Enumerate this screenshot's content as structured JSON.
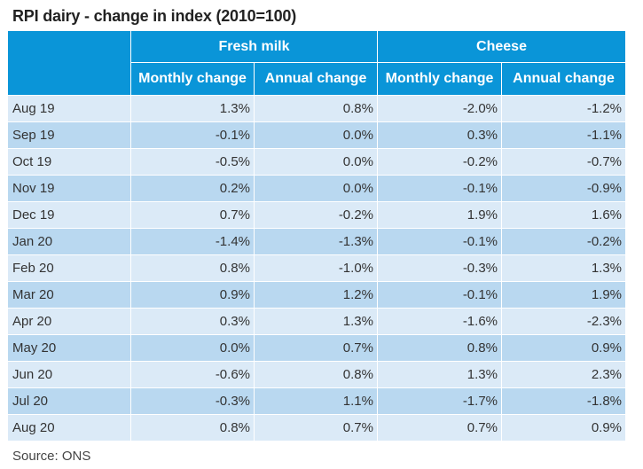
{
  "title": "RPI dairy - change in index (2010=100)",
  "source": "Source: ONS",
  "groups": [
    "Fresh milk",
    "Cheese"
  ],
  "subheaders": [
    "Monthly change",
    "Annual change",
    "Monthly change",
    "Annual change"
  ],
  "rows": [
    {
      "month": "Aug 19",
      "values": [
        "1.3%",
        "0.8%",
        "-2.0%",
        "-1.2%"
      ]
    },
    {
      "month": "Sep 19",
      "values": [
        "-0.1%",
        "0.0%",
        "0.3%",
        "-1.1%"
      ]
    },
    {
      "month": "Oct 19",
      "values": [
        "-0.5%",
        "0.0%",
        "-0.2%",
        "-0.7%"
      ]
    },
    {
      "month": "Nov 19",
      "values": [
        "0.2%",
        "0.0%",
        "-0.1%",
        "-0.9%"
      ]
    },
    {
      "month": "Dec 19",
      "values": [
        "0.7%",
        "-0.2%",
        "1.9%",
        "1.6%"
      ]
    },
    {
      "month": "Jan 20",
      "values": [
        "-1.4%",
        "-1.3%",
        "-0.1%",
        "-0.2%"
      ]
    },
    {
      "month": "Feb 20",
      "values": [
        "0.8%",
        "-1.0%",
        "-0.3%",
        "1.3%"
      ]
    },
    {
      "month": "Mar 20",
      "values": [
        "0.9%",
        "1.2%",
        "-0.1%",
        "1.9%"
      ]
    },
    {
      "month": "Apr 20",
      "values": [
        "0.3%",
        "1.3%",
        "-1.6%",
        "-2.3%"
      ]
    },
    {
      "month": "May 20",
      "values": [
        "0.0%",
        "0.7%",
        "0.8%",
        "0.9%"
      ]
    },
    {
      "month": "Jun 20",
      "values": [
        "-0.6%",
        "0.8%",
        "1.3%",
        "2.3%"
      ]
    },
    {
      "month": "Jul 20",
      "values": [
        "-0.3%",
        "1.1%",
        "-1.7%",
        "-1.8%"
      ]
    },
    {
      "month": "Aug 20",
      "values": [
        "0.8%",
        "0.7%",
        "0.7%",
        "0.9%"
      ]
    }
  ],
  "colors": {
    "header_bg": "#0a95d8",
    "row_light": "#dbeaf7",
    "row_dark": "#b9d8f0"
  }
}
